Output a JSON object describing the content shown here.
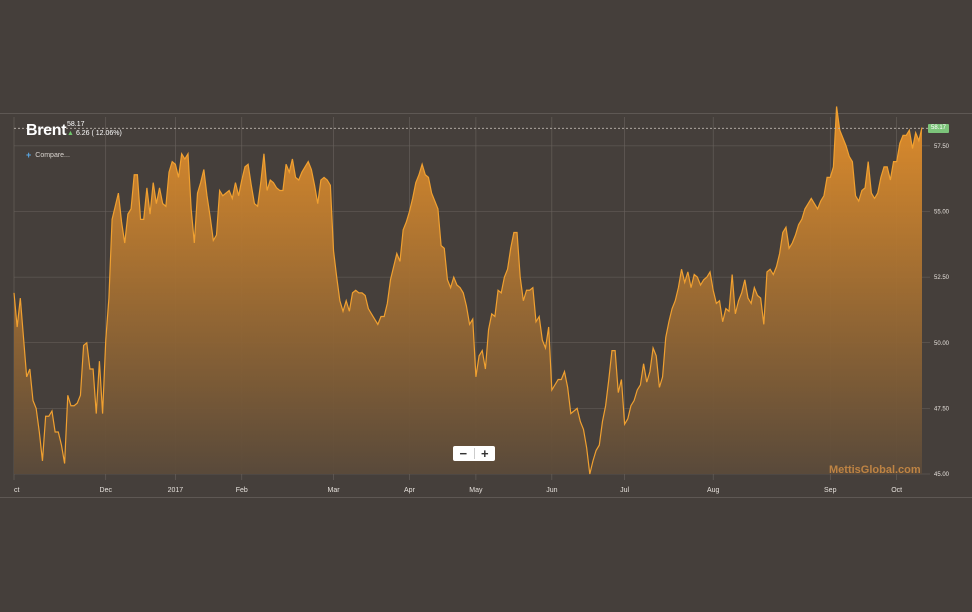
{
  "header": {
    "ticker": "Brent",
    "last_price": "58.17",
    "change": "6.26 ( 12.06%)",
    "compare_label": "Compare...",
    "compare_icon": "plus-icon"
  },
  "zoom": {
    "minus_label": "−",
    "plus_label": "+"
  },
  "watermark": "MettisGlobal.com",
  "price_flag": "58.17",
  "colors": {
    "background": "#453f3b",
    "line": "#f0a030",
    "fill_top": "#e8912a",
    "fill_bottom": "#5a4a3a",
    "grid": "#6a635e",
    "change_up": "#6ec56b",
    "flag": "#7cc47a"
  },
  "chart_data": {
    "type": "area",
    "series": [
      {
        "name": "Brent",
        "values": [
          51.9,
          50.6,
          51.7,
          50.2,
          48.7,
          49.0,
          47.8,
          47.5,
          46.6,
          45.5,
          47.2,
          47.2,
          47.4,
          46.6,
          46.6,
          46.1,
          45.4,
          48.0,
          47.6,
          47.6,
          47.7,
          48.0,
          49.9,
          50.0,
          49.0,
          49.0,
          47.3,
          49.3,
          47.3,
          50.1,
          51.7,
          54.7,
          55.2,
          55.7,
          54.6,
          53.8,
          54.9,
          55.1,
          56.4,
          56.4,
          54.7,
          54.7,
          55.9,
          54.9,
          56.1,
          55.3,
          55.9,
          55.3,
          55.2,
          56.5,
          56.9,
          56.8,
          56.3,
          57.2,
          57.0,
          57.2,
          55.1,
          53.8,
          55.7,
          56.1,
          56.6,
          55.6,
          54.8,
          53.9,
          54.1,
          55.8,
          55.6,
          55.7,
          55.8,
          55.5,
          56.1,
          55.6,
          56.2,
          56.7,
          56.8,
          56.0,
          55.3,
          55.2,
          56.1,
          57.2,
          55.8,
          56.2,
          56.1,
          55.9,
          55.8,
          55.8,
          56.8,
          56.5,
          57.0,
          56.3,
          56.2,
          56.5,
          56.7,
          56.9,
          56.6,
          56.0,
          55.3,
          56.2,
          56.3,
          56.2,
          56.0,
          53.5,
          52.5,
          51.6,
          51.2,
          51.6,
          51.2,
          51.9,
          52.0,
          51.9,
          51.9,
          51.8,
          51.3,
          51.1,
          50.9,
          50.7,
          51.0,
          51.0,
          51.5,
          52.4,
          52.9,
          53.4,
          53.1,
          54.3,
          54.6,
          55.0,
          55.5,
          56.1,
          56.4,
          56.8,
          56.4,
          56.3,
          55.7,
          55.4,
          55.1,
          53.7,
          53.6,
          52.4,
          52.1,
          52.5,
          52.2,
          52.1,
          51.9,
          51.4,
          50.7,
          50.9,
          48.7,
          49.5,
          49.7,
          49.0,
          50.5,
          51.1,
          51.0,
          52.0,
          51.9,
          52.5,
          52.8,
          53.6,
          54.2,
          54.2,
          52.5,
          51.6,
          52.0,
          52.0,
          52.1,
          50.8,
          51.0,
          50.1,
          49.8,
          50.6,
          48.2,
          48.4,
          48.6,
          48.6,
          48.9,
          48.3,
          47.3,
          47.4,
          47.5,
          47.0,
          46.7,
          46.0,
          45.0,
          45.5,
          45.9,
          46.1,
          47.0,
          47.6,
          48.6,
          49.7,
          49.7,
          48.1,
          48.6,
          46.9,
          47.1,
          47.6,
          47.8,
          48.2,
          48.4,
          49.2,
          48.5,
          48.9,
          49.8,
          49.5,
          48.3,
          48.7,
          50.2,
          50.8,
          51.3,
          51.6,
          52.1,
          52.8,
          52.3,
          52.7,
          52.1,
          52.6,
          52.5,
          52.2,
          52.4,
          52.5,
          52.7,
          52.0,
          51.5,
          51.6,
          50.8,
          51.3,
          51.2,
          52.6,
          51.1,
          51.6,
          51.9,
          52.4,
          51.7,
          51.5,
          52.1,
          51.8,
          51.7,
          50.7,
          52.7,
          52.8,
          52.6,
          52.9,
          53.4,
          54.2,
          54.4,
          53.6,
          53.8,
          54.1,
          54.5,
          54.7,
          55.1,
          55.3,
          55.5,
          55.3,
          55.1,
          55.4,
          55.6,
          56.3,
          56.3,
          56.7,
          59.0,
          58.1,
          57.8,
          57.5,
          57.1,
          56.9,
          55.6,
          55.4,
          55.8,
          55.9,
          56.9,
          55.7,
          55.5,
          55.7,
          56.3,
          56.7,
          56.7,
          56.2,
          56.9,
          56.9,
          57.6,
          57.9,
          57.9,
          58.1,
          57.4,
          58.0,
          57.7,
          58.2
        ]
      }
    ],
    "x_ticks": [
      "ct",
      "Dec",
      "2017",
      "Feb",
      "Mar",
      "Apr",
      "May",
      "Jun",
      "Jul",
      "Aug",
      "Sep",
      "Oct"
    ],
    "y_ticks": [
      "45.00",
      "47.50",
      "50.00",
      "52.50",
      "55.00",
      "57.50"
    ],
    "ylim": [
      45.0,
      58.6
    ],
    "last_value": 58.17,
    "grid": true,
    "legend": "none"
  }
}
